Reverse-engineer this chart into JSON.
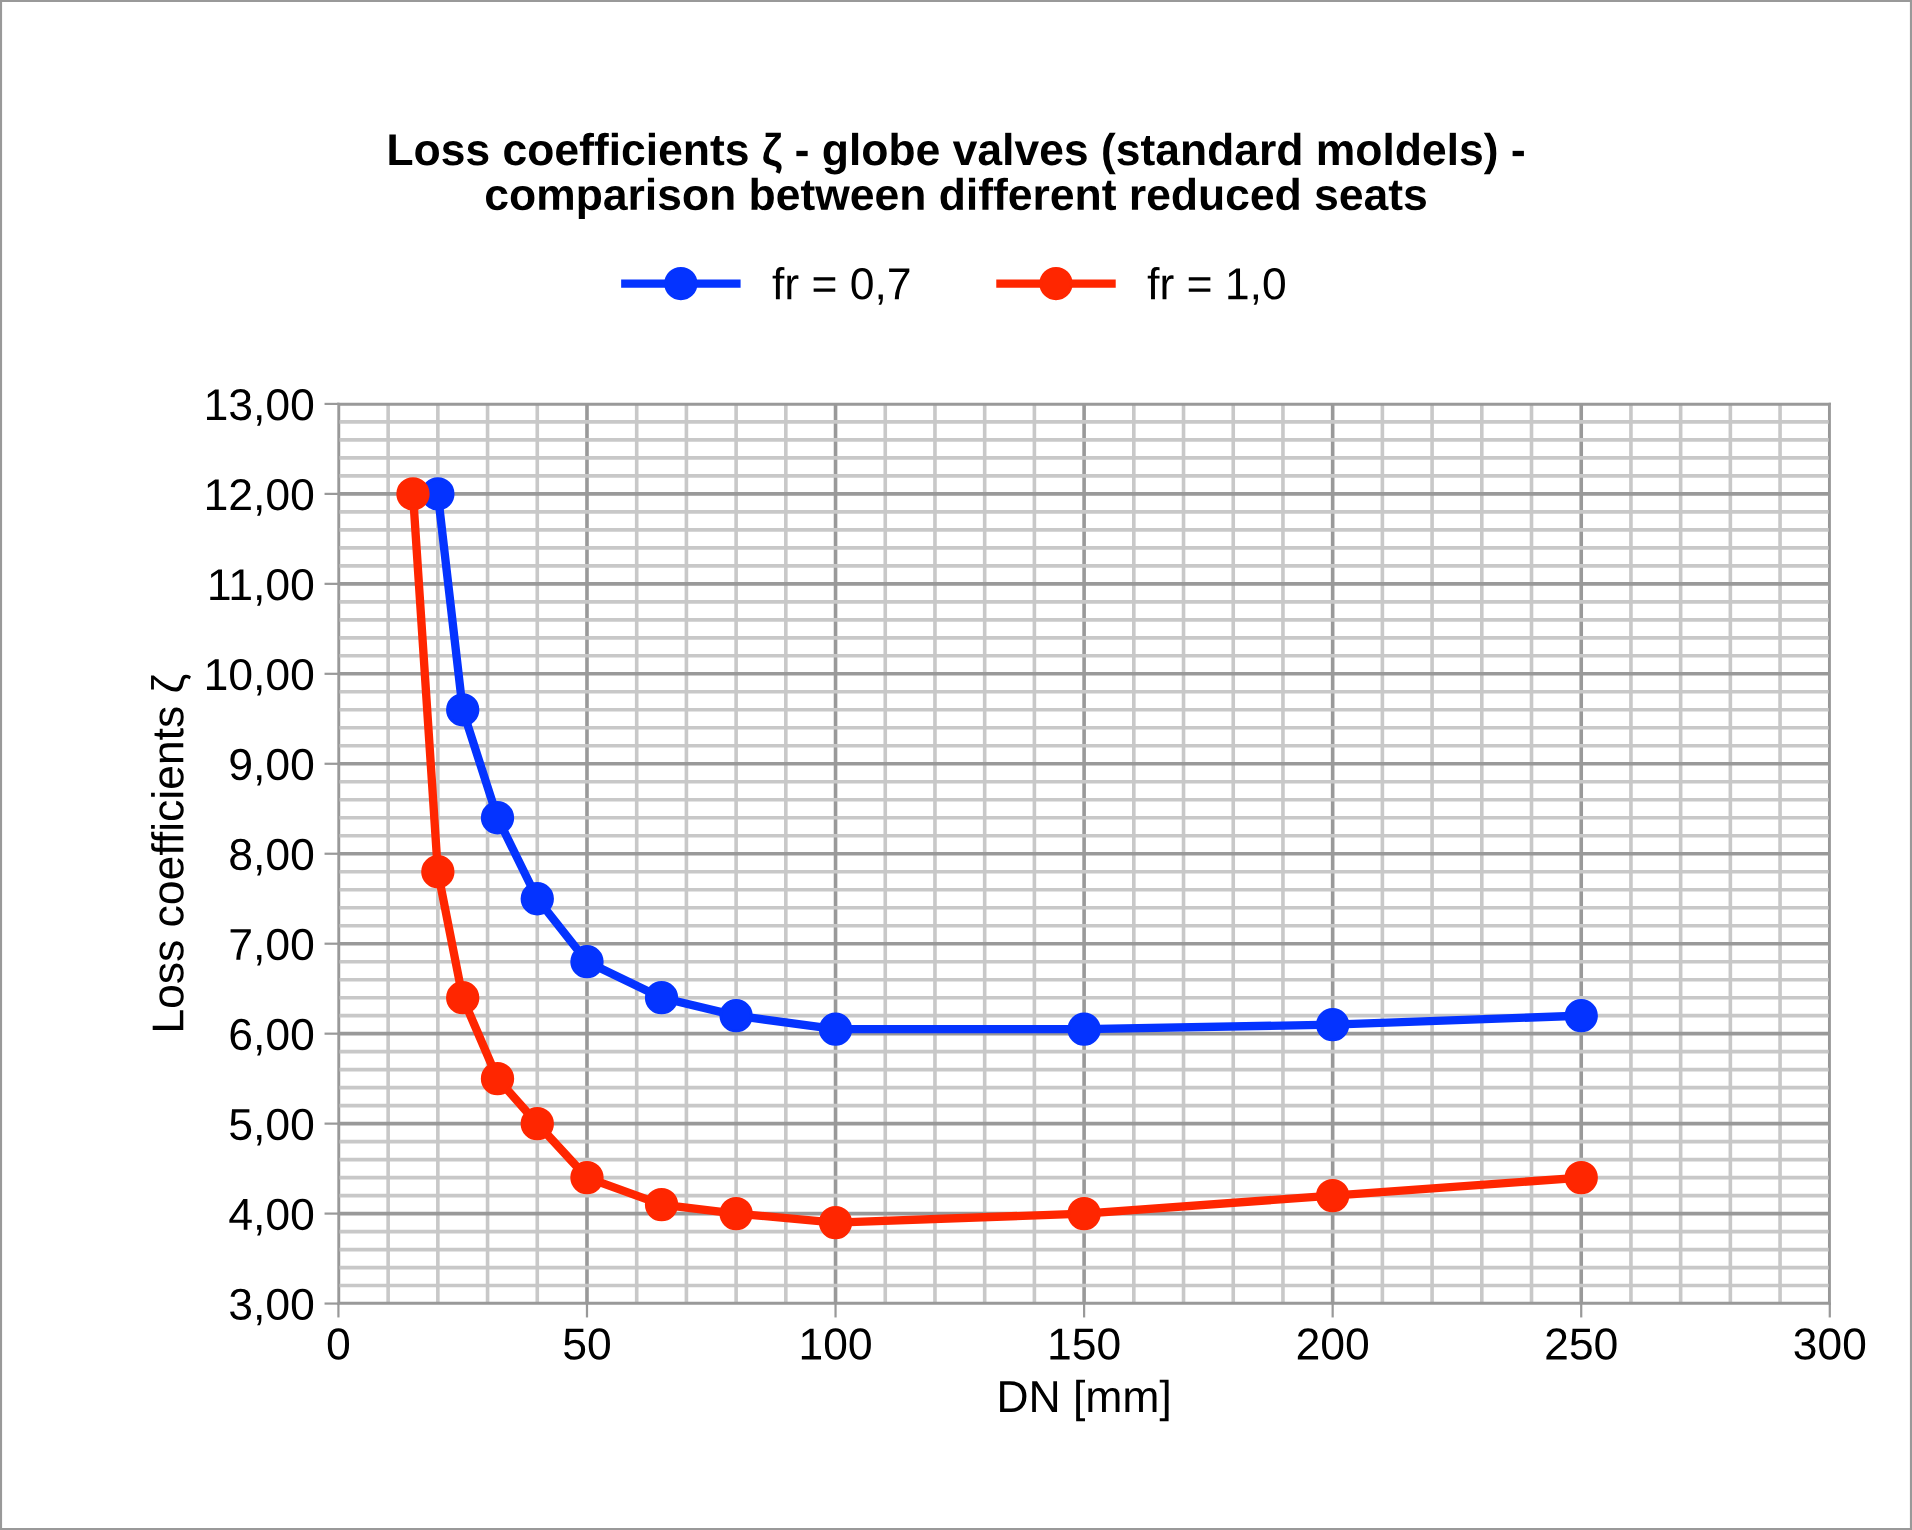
{
  "chart_data": {
    "type": "line",
    "title": "Loss coefficients ζ - globe valves (standard moldels) -\ncomparison between different reduced seats",
    "xlabel": "DN [mm]",
    "ylabel": "Loss coefficients ζ",
    "xlim": [
      0,
      300
    ],
    "ylim": [
      3,
      13
    ],
    "xticks": [
      0,
      50,
      100,
      150,
      200,
      250,
      300
    ],
    "yticks": [
      {
        "value": 3,
        "label": "3,00"
      },
      {
        "value": 4,
        "label": "4,00"
      },
      {
        "value": 5,
        "label": "5,00"
      },
      {
        "value": 6,
        "label": "6,00"
      },
      {
        "value": 7,
        "label": "7,00"
      },
      {
        "value": 8,
        "label": "8,00"
      },
      {
        "value": 9,
        "label": "9,00"
      },
      {
        "value": 10,
        "label": "10,00"
      },
      {
        "value": 11,
        "label": "11,00"
      },
      {
        "value": 12,
        "label": "12,00"
      },
      {
        "value": 13,
        "label": "13,00"
      }
    ],
    "grid": true,
    "legend": "top",
    "marker": "circle",
    "line_style": "solid",
    "series": [
      {
        "name": "fr = 0,7",
        "color": "#0433ff",
        "x": [
          20,
          25,
          32,
          40,
          50,
          65,
          80,
          100,
          150,
          200,
          250
        ],
        "values": [
          12,
          9.6,
          8.4,
          7.5,
          6.8,
          6.4,
          6.2,
          6.05,
          6.05,
          6.1,
          6.2
        ]
      },
      {
        "name": "fr = 1,0",
        "color": "#ff2600",
        "x": [
          15,
          20,
          25,
          32,
          40,
          50,
          65,
          80,
          100,
          150,
          200,
          250
        ],
        "values": [
          12,
          7.8,
          6.4,
          5.5,
          5.0,
          4.4,
          4.1,
          4.0,
          3.9,
          4.0,
          4.2,
          4.4
        ]
      }
    ]
  }
}
